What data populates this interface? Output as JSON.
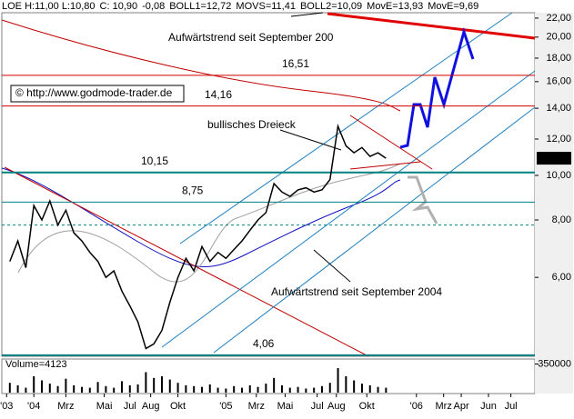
{
  "chart_data": {
    "type": "line",
    "header": [
      {
        "text": "LOE H:11,00 L:10,80",
        "color": "#000000"
      },
      {
        "text": "C: 10,90",
        "color": "#d00000"
      },
      {
        "text": "-0,08",
        "color": "#000000"
      },
      {
        "text": "BOLL1=12,72",
        "color": "#909090"
      },
      {
        "text": "MOVS=11,41",
        "color": "#000000"
      },
      {
        "text": "BOLL2=10,09",
        "color": "#909090"
      },
      {
        "text": "MovE=13,93",
        "color": "#d00000"
      },
      {
        "text": "MovE=9,69",
        "color": "#1010d0"
      }
    ],
    "annotations": [
      "Aufwärtstrend seit September 200",
      "bullisches Dreieck",
      "Aufwärtstrend seit September 2004"
    ],
    "copyright": "© http://www.godmode-trader.de",
    "log_scale": true,
    "color": "#000000",
    "x": [
      -1.5,
      -1,
      -0.5,
      0,
      0.5,
      1,
      1.5,
      2,
      2.5,
      3,
      3.5,
      4,
      4.5,
      5,
      5.5,
      6,
      6.5,
      7,
      7.5,
      8,
      8.5,
      9,
      9.5,
      10,
      10.5,
      11,
      11.5,
      12,
      12.5,
      13,
      13.5,
      14,
      14.5,
      15,
      15.5,
      16,
      16.5,
      17,
      17.5,
      18,
      18.5,
      19,
      19.5,
      20,
      20.5,
      21,
      21.5,
      22
    ],
    "values": [
      6.5,
      7.2,
      6.3,
      8.6,
      8.0,
      8.8,
      7.8,
      8.4,
      7.5,
      7.2,
      6.8,
      6.5,
      6.0,
      6.2,
      5.6,
      5.2,
      4.8,
      4.2,
      4.3,
      4.6,
      5.3,
      6.0,
      6.6,
      6.2,
      7.0,
      6.5,
      6.8,
      6.6,
      6.9,
      7.2,
      7.6,
      8.0,
      8.3,
      9.6,
      9.2,
      9.0,
      9.3,
      9.4,
      9.2,
      9.3,
      9.8,
      12.8,
      11.6,
      11.2,
      11.5,
      11.0,
      11.2,
      10.9
    ],
    "xlim": [
      -2,
      31.3
    ],
    "ylim": [
      4.04,
      22.6
    ],
    "xticks": [
      {
        "value": -1.7,
        "label": "'03"
      },
      {
        "value": 0,
        "label": "'04"
      },
      {
        "value": 2,
        "label": "Mrz"
      },
      {
        "value": 4.4,
        "label": "Mai"
      },
      {
        "value": 6,
        "label": "Jul"
      },
      {
        "value": 7.3,
        "label": "Aug"
      },
      {
        "value": 9,
        "label": "Okt"
      },
      {
        "value": 12,
        "label": "'05"
      },
      {
        "value": 13.9,
        "label": "Mrz"
      },
      {
        "value": 15.7,
        "label": "Mai"
      },
      {
        "value": 17.7,
        "label": "Jul"
      },
      {
        "value": 18.9,
        "label": "Aug"
      },
      {
        "value": 20.8,
        "label": "Okt"
      },
      {
        "value": 23.9,
        "label": "'06"
      },
      {
        "value": 25.6,
        "label": "Mrz"
      },
      {
        "value": 26.7,
        "label": "Apr"
      },
      {
        "value": 28.4,
        "label": "Jun"
      },
      {
        "value": 29.8,
        "label": "Jul"
      }
    ],
    "yticks": [
      {
        "value": 6,
        "label": "6,00"
      },
      {
        "value": 8,
        "label": "8,00"
      },
      {
        "value": 10,
        "label": "10,00"
      },
      {
        "value": 12,
        "label": "12,00"
      },
      {
        "value": 14,
        "label": "14,00"
      },
      {
        "value": 16,
        "label": "16,00"
      },
      {
        "value": 18,
        "label": "18,00"
      },
      {
        "value": 20,
        "label": "20,00"
      },
      {
        "value": 22,
        "label": "22,00"
      }
    ],
    "last_price": {
      "value": 10.9,
      "label": "10,90"
    },
    "levels": [
      {
        "value": 16.51,
        "label": "16,51",
        "color": "#d00000"
      },
      {
        "value": 14.16,
        "label": "14,16",
        "color": "#d00000"
      },
      {
        "value": 10.15,
        "label": "10,15",
        "color": "#008080"
      },
      {
        "value": 8.75,
        "label": "8,75",
        "color": "#008080"
      },
      {
        "value": 7.8,
        "color": "#008080"
      },
      {
        "value": 4.06,
        "label": "4,06",
        "color": "#008080"
      }
    ],
    "volume": {
      "label": "Volume=4123",
      "values": [
        120000,
        90000,
        60000,
        200000,
        150000,
        110000,
        80000,
        170000,
        90000,
        70000,
        60000,
        130000,
        80000,
        60000,
        140000,
        90000,
        100000,
        250000,
        180000,
        200000,
        160000,
        120000,
        90000,
        80000,
        70000,
        100000,
        60000,
        50000,
        80000,
        60000,
        90000,
        70000,
        110000,
        180000,
        90000,
        60000,
        70000,
        50000,
        60000,
        80000,
        120000,
        300000,
        200000,
        150000,
        110000,
        90000,
        70000,
        60000
      ],
      "ylim": [
        0,
        400000
      ],
      "yticks": [
        350000
      ]
    }
  }
}
